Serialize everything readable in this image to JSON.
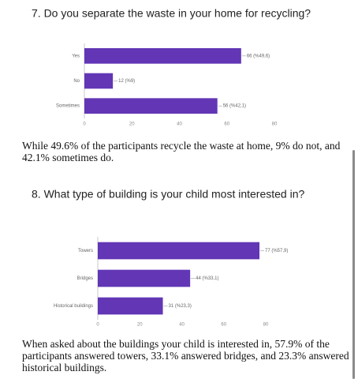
{
  "chart_data": [
    {
      "type": "bar",
      "orientation": "horizontal",
      "title": "7. Do you separate the waste in your home for recycling?",
      "categories": [
        "Yes",
        "No",
        "Sometimes"
      ],
      "values": [
        66,
        12,
        56
      ],
      "value_labels": [
        "66 (%49,6)",
        "12 (%9)",
        "56 (%42,1)"
      ],
      "color": "#6236b5",
      "xlim": [
        0,
        80
      ],
      "xticks": [
        0,
        20,
        40,
        60,
        80
      ]
    },
    {
      "type": "bar",
      "orientation": "horizontal",
      "title": "8. What type of building is your child most interested in?",
      "categories": [
        "Towers",
        "Bridges",
        "Historical buildings"
      ],
      "values": [
        77,
        44,
        31
      ],
      "value_labels": [
        "77 (%57,9)",
        "44 (%33,1)",
        "31 (%23,3)"
      ],
      "color": "#6236b5",
      "xlim": [
        0,
        80
      ],
      "xticks": [
        0,
        20,
        40,
        60,
        80
      ]
    }
  ],
  "paragraphs": [
    "While 49.6% of the participants recycle the waste at home, 9% do not, and 42.1% sometimes do.",
    "When asked about the buildings your child is interested in, 57.9% of the participants answered towers, 33.1% answered bridges, and 23.3% answered historical buildings."
  ]
}
